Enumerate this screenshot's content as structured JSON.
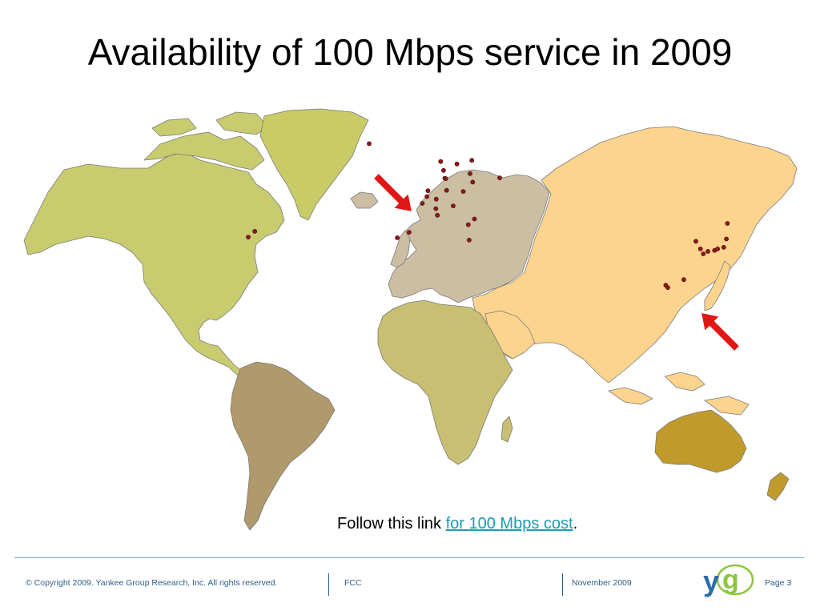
{
  "slide": {
    "title": "Availability of 100 Mbps service in 2009",
    "link_prefix": "Follow this link ",
    "link_text": "for 100 Mbps cost",
    "link_suffix": "."
  },
  "map": {
    "colors": {
      "north_america": "#c9cc6e",
      "greenland": "#c8cb66",
      "south_america": "#b09a6c",
      "europe": "#cbbea3",
      "africa": "#c8bf72",
      "asia": "#fdd48e",
      "australia": "#c19a2c",
      "coastline": "#7a7a7a",
      "marker": "#8b1a1a",
      "arrow": "#e21616"
    },
    "markers": [
      {
        "name": "Washington DC",
        "lat": 38.9,
        "lon": -77.0
      },
      {
        "name": "New York",
        "lat": 40.7,
        "lon": -74.0
      },
      {
        "name": "Reykjavik",
        "lat": 64.1,
        "lon": -21.9
      },
      {
        "name": "Lisbon",
        "lat": 38.7,
        "lon": -9.1
      },
      {
        "name": "Madrid",
        "lat": 40.4,
        "lon": -3.7
      },
      {
        "name": "Paris",
        "lat": 48.9,
        "lon": 2.35
      },
      {
        "name": "Amsterdam",
        "lat": 52.4,
        "lon": 4.9
      },
      {
        "name": "Brussels",
        "lat": 50.8,
        "lon": 4.4
      },
      {
        "name": "Frankfurt",
        "lat": 50.1,
        "lon": 8.7
      },
      {
        "name": "Zurich",
        "lat": 47.4,
        "lon": 8.5
      },
      {
        "name": "Milan",
        "lat": 45.5,
        "lon": 9.2
      },
      {
        "name": "Vienna",
        "lat": 48.2,
        "lon": 16.4
      },
      {
        "name": "Oslo",
        "lat": 59.9,
        "lon": 10.7
      },
      {
        "name": "Stockholm",
        "lat": 59.3,
        "lon": 18.1
      },
      {
        "name": "Gothenburg",
        "lat": 57.7,
        "lon": 12.0
      },
      {
        "name": "Copenhagen",
        "lat": 55.7,
        "lon": 12.6
      },
      {
        "name": "Malmo",
        "lat": 55.6,
        "lon": 13.0
      },
      {
        "name": "Helsinki",
        "lat": 60.2,
        "lon": 24.9
      },
      {
        "name": "Riga",
        "lat": 56.9,
        "lon": 24.1
      },
      {
        "name": "Vilnius",
        "lat": 54.7,
        "lon": 25.3
      },
      {
        "name": "Warsaw",
        "lat": 52.2,
        "lon": 21.0
      },
      {
        "name": "Berlin",
        "lat": 52.5,
        "lon": 13.4
      },
      {
        "name": "Moscow",
        "lat": 55.8,
        "lon": 37.6
      },
      {
        "name": "Bucharest",
        "lat": 44.4,
        "lon": 26.1
      },
      {
        "name": "Sofia",
        "lat": 42.7,
        "lon": 23.3
      },
      {
        "name": "Athens",
        "lat": 37.98,
        "lon": 23.7
      },
      {
        "name": "Seoul",
        "lat": 37.6,
        "lon": 127.0
      },
      {
        "name": "Busan",
        "lat": 35.2,
        "lon": 129.1
      },
      {
        "name": "Tokyo",
        "lat": 35.7,
        "lon": 139.7
      },
      {
        "name": "Osaka",
        "lat": 34.7,
        "lon": 135.5
      },
      {
        "name": "Nagoya",
        "lat": 35.2,
        "lon": 136.9
      },
      {
        "name": "Fukuoka",
        "lat": 33.6,
        "lon": 130.4
      },
      {
        "name": "Hiroshima",
        "lat": 34.4,
        "lon": 132.5
      },
      {
        "name": "Sendai",
        "lat": 38.3,
        "lon": 140.9
      },
      {
        "name": "Sapporo",
        "lat": 43.1,
        "lon": 141.4
      },
      {
        "name": "Taipei",
        "lat": 25.0,
        "lon": 121.5
      },
      {
        "name": "Hong Kong",
        "lat": 22.3,
        "lon": 114.2
      },
      {
        "name": "Guangzhou",
        "lat": 23.1,
        "lon": 113.3
      }
    ],
    "arrows": [
      {
        "name": "europe-arrow",
        "direction": "down-right"
      },
      {
        "name": "asia-arrow",
        "direction": "up-left"
      }
    ]
  },
  "footer": {
    "copyright": "© Copyright 2009. Yankee Group Research, Inc.  All rights reserved.",
    "client": "FCC",
    "date": "November 2009",
    "page": "Page 3",
    "logo_text": "yg",
    "colors": {
      "text": "#2e5c8a",
      "logo_y": "#2b6ea8",
      "logo_g": "#8cc63f"
    }
  }
}
